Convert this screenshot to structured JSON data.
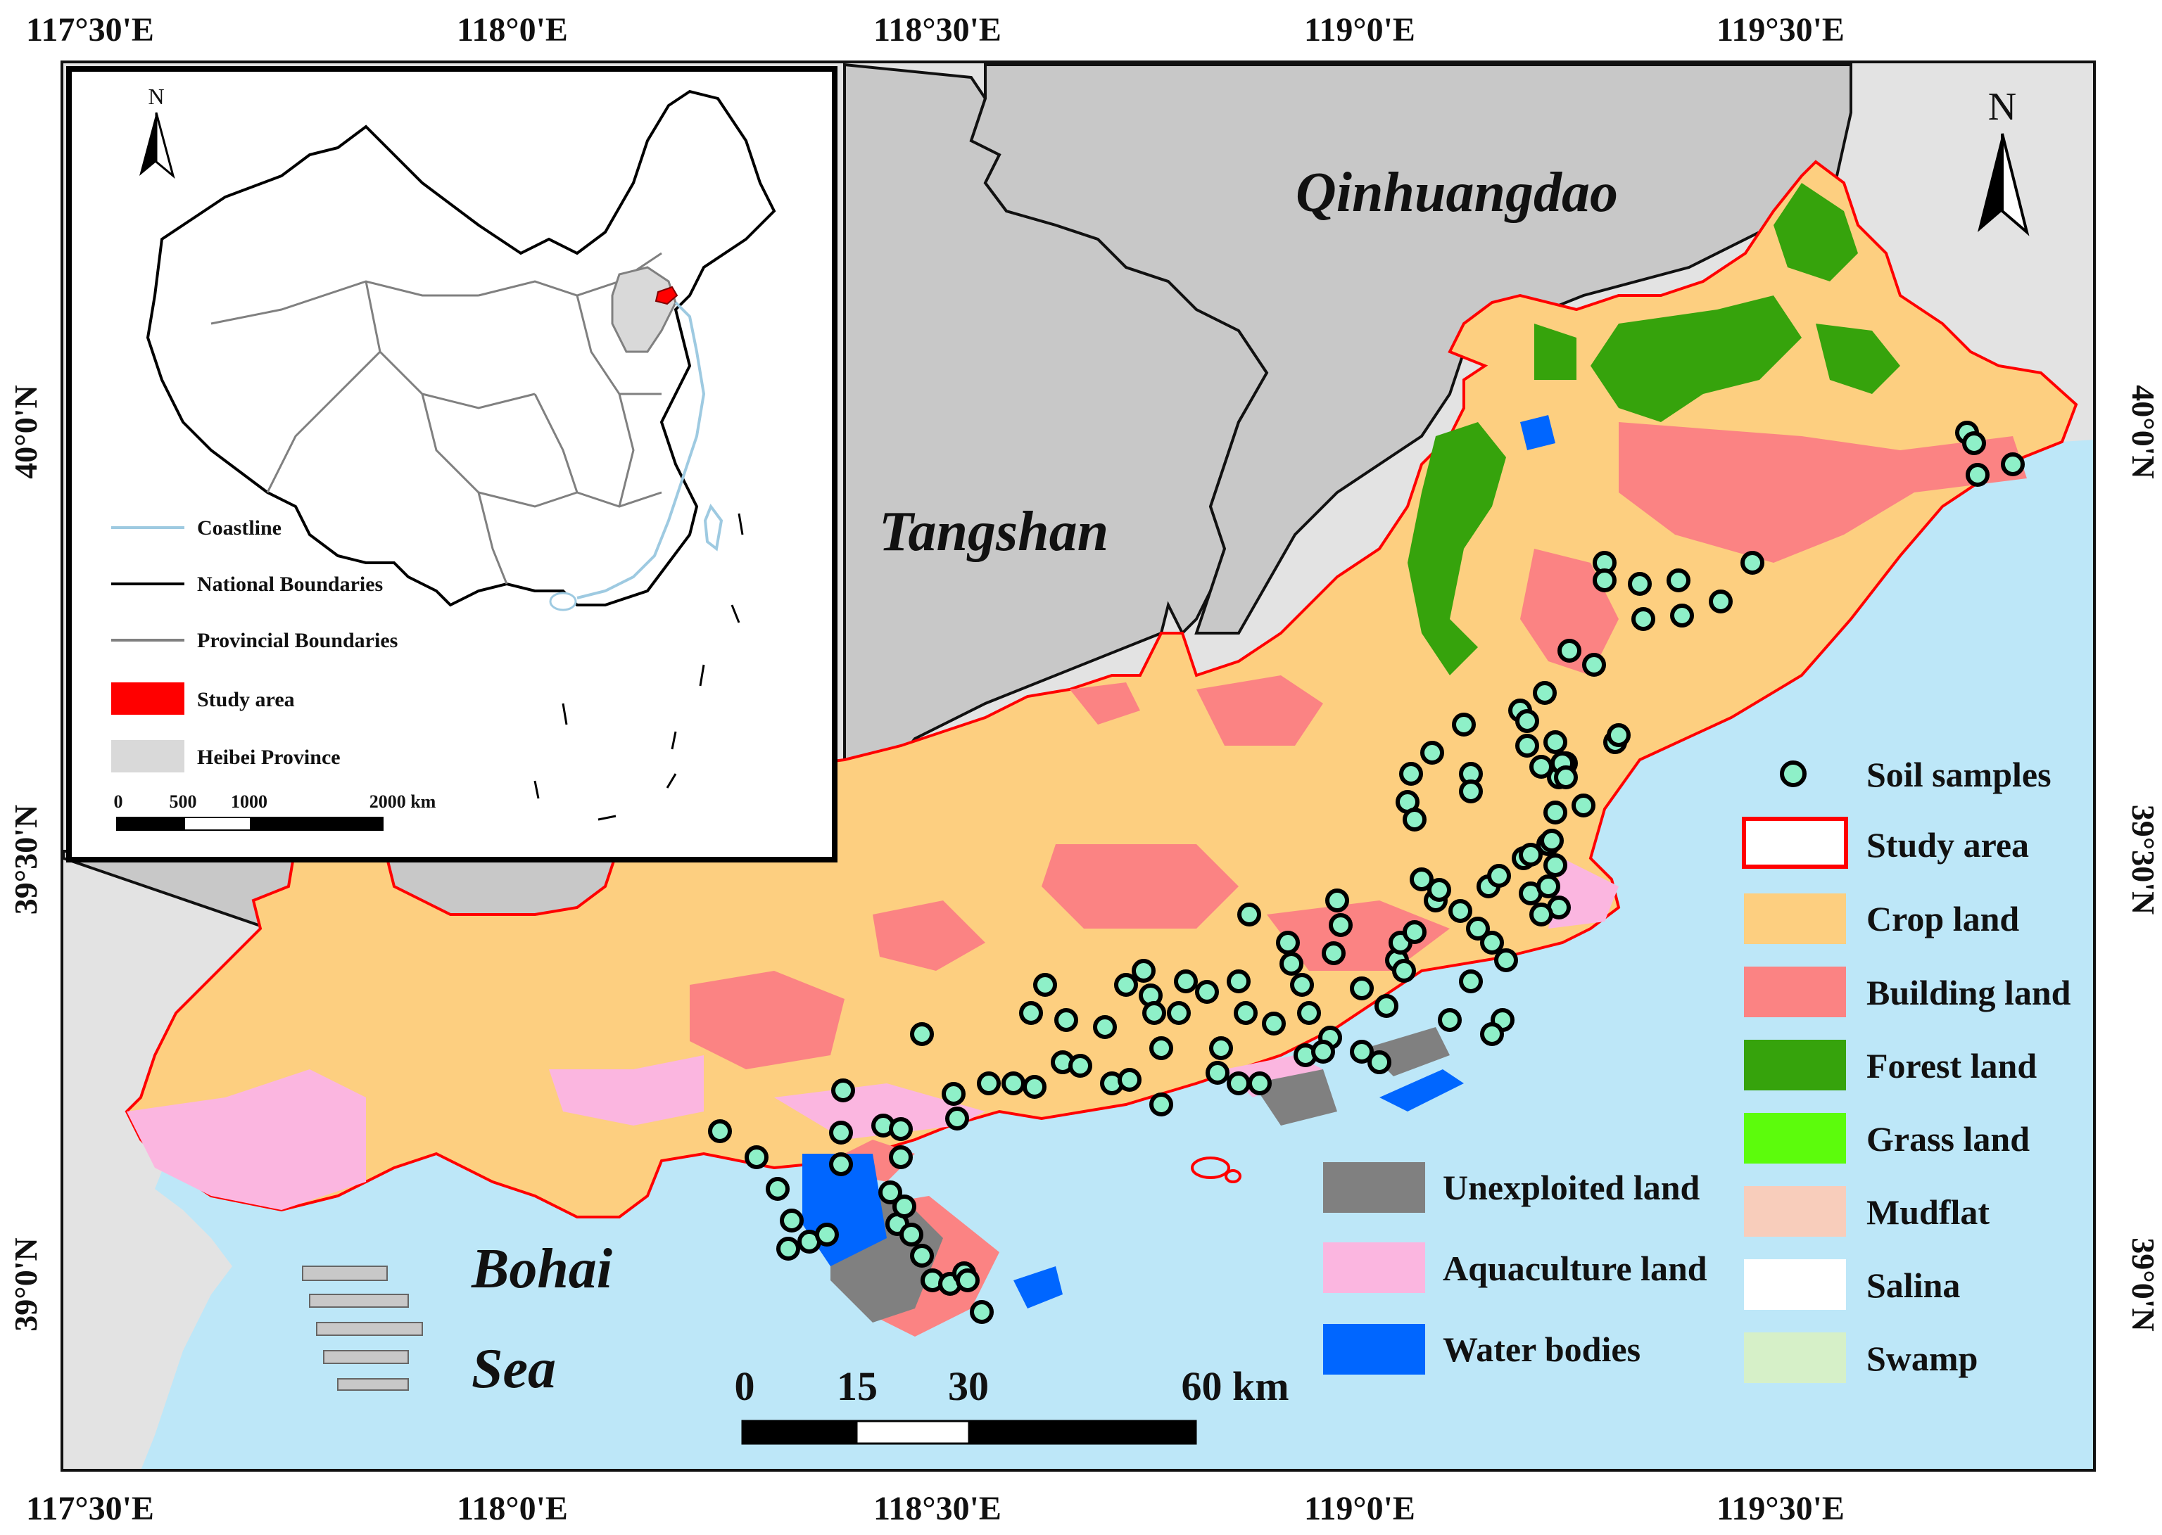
{
  "axis_labels": {
    "longitudes": [
      "117°30'E",
      "118°0'E",
      "118°30'E",
      "119°0'E",
      "119°30'E"
    ],
    "latitudes": [
      "40°0'N",
      "39°30'N",
      "39°0'N"
    ]
  },
  "places": {
    "qinhuangdao": "Qinhuangdao",
    "tangshan": "Tangshan",
    "bohai_line1": "Bohai",
    "bohai_line2": "Sea"
  },
  "north_arrow": {
    "label": "N"
  },
  "scale_bar": {
    "ticks": [
      "0",
      "15",
      "30",
      "60 km"
    ]
  },
  "inset": {
    "north_label": "N",
    "legend": [
      {
        "label": "Coastline",
        "symbol": "line",
        "color": "#9ecae1"
      },
      {
        "label": "National Boundaries",
        "symbol": "line",
        "color": "#000000"
      },
      {
        "label": "Provincial Boundaries",
        "symbol": "line",
        "color": "#808080"
      },
      {
        "label": "Study area",
        "symbol": "patch",
        "color": "#ff0000"
      },
      {
        "label": "Heibei  Province",
        "symbol": "patch",
        "color": "#d9d9d9"
      }
    ],
    "scale_ticks": [
      "0",
      "500",
      "1000",
      "2000 km"
    ]
  },
  "legend_right": [
    {
      "label": "Soil samples",
      "symbol": "circle",
      "color": "#8ef0c8"
    },
    {
      "label": "Study area",
      "symbol": "outline",
      "color": "#ff0000"
    },
    {
      "label": "Crop land",
      "symbol": "patch",
      "color": "#fdcf80"
    },
    {
      "label": "Building land",
      "symbol": "patch",
      "color": "#fb8383"
    },
    {
      "label": "Forest land",
      "symbol": "patch",
      "color": "#36a30c"
    },
    {
      "label": "Grass land",
      "symbol": "patch",
      "color": "#5cfc0c"
    },
    {
      "label": "Mudflat",
      "symbol": "patch",
      "color": "#f8cdbb"
    },
    {
      "label": "Salina",
      "symbol": "patch",
      "color": "#ffffff"
    },
    {
      "label": "Swamp",
      "symbol": "patch",
      "color": "#d6f0c8"
    }
  ],
  "legend_middle": [
    {
      "label": "Unexploited land",
      "symbol": "patch",
      "color": "#808080"
    },
    {
      "label": "Aquaculture land",
      "symbol": "patch",
      "color": "#fbb6e0"
    },
    {
      "label": "Water bodies",
      "symbol": "patch",
      "color": "#0066ff"
    }
  ],
  "colors": {
    "sea": "#bde7f8",
    "tangshan_region": "#c8c8c8",
    "outer_region": "#e3e3e3",
    "study_outline": "#ff0000"
  }
}
